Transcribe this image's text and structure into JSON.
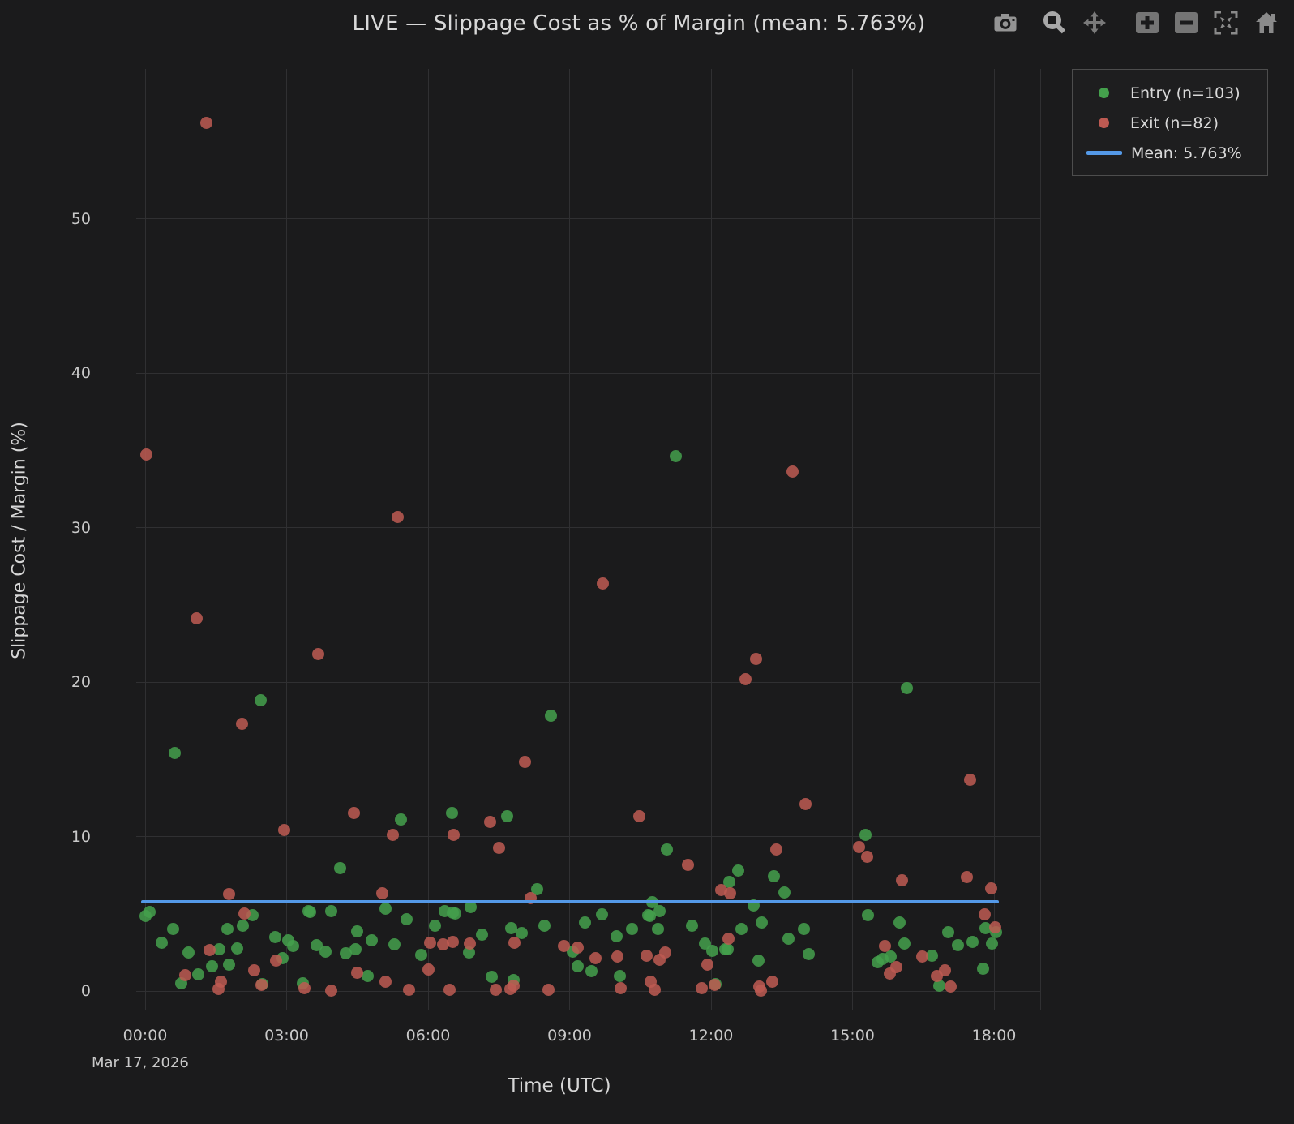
{
  "header": {
    "title": "LIVE — Slippage Cost as % of Margin (mean: 5.763%)"
  },
  "modebar": {
    "icons": [
      "camera",
      "box-zoom",
      "pan",
      "zoom-in",
      "zoom-out",
      "autoscale",
      "reset-home"
    ]
  },
  "chart_data": {
    "type": "scatter",
    "title": "LIVE — Slippage Cost as % of Margin (mean: 5.763%)",
    "xlabel": "Time (UTC)",
    "ylabel": "Slippage Cost / Margin (%)",
    "x_date_label": "Mar 17, 2026",
    "x_tick_hours": [
      0,
      3,
      6,
      9,
      12,
      15,
      18
    ],
    "x_tick_labels": [
      "00:00",
      "03:00",
      "06:00",
      "09:00",
      "12:00",
      "15:00",
      "18:00"
    ],
    "y_ticks": [
      0,
      10,
      20,
      30,
      40,
      50
    ],
    "ylim": [
      -1.2,
      59.7
    ],
    "xlim_hours": [
      -0.19,
      19.0
    ],
    "grid": true,
    "legend_position": "top-right",
    "mean_value": 5.763,
    "colors": {
      "entry": "#44a04c",
      "exit": "#bd5a52",
      "mean": "#5499e7"
    },
    "series": [
      {
        "name": "Entry (n=103)",
        "type": "scatter",
        "color": "#44a04c",
        "points": [
          [
            11.26,
            34.6
          ],
          [
            16.15,
            19.6
          ],
          [
            2.45,
            18.8
          ],
          [
            8.6,
            17.8
          ],
          [
            0.62,
            15.4
          ],
          [
            6.5,
            11.51
          ],
          [
            7.67,
            11.3
          ],
          [
            5.42,
            11.09
          ],
          [
            15.28,
            10.11
          ],
          [
            11.06,
            9.17
          ],
          [
            4.13,
            7.93
          ],
          [
            12.58,
            7.77
          ],
          [
            13.33,
            7.45
          ],
          [
            12.39,
            7.07
          ],
          [
            8.31,
            6.6
          ],
          [
            13.55,
            6.4
          ],
          [
            10.75,
            5.74
          ],
          [
            12.9,
            5.53
          ],
          [
            6.9,
            5.41
          ],
          [
            5.09,
            5.35
          ],
          [
            10.91,
            5.18
          ],
          [
            6.35,
            5.18
          ],
          [
            3.46,
            5.15
          ],
          [
            3.94,
            5.15
          ],
          [
            0.1,
            5.13
          ],
          [
            3.5,
            5.1
          ],
          [
            6.52,
            5.05
          ],
          [
            6.58,
            5.0
          ],
          [
            9.68,
            4.95
          ],
          [
            2.28,
            4.92
          ],
          [
            10.66,
            4.92
          ],
          [
            15.33,
            4.92
          ],
          [
            0.0,
            4.85
          ],
          [
            10.7,
            4.85
          ],
          [
            5.55,
            4.62
          ],
          [
            16.0,
            4.45
          ],
          [
            9.33,
            4.45
          ],
          [
            13.08,
            4.43
          ],
          [
            11.59,
            4.25
          ],
          [
            6.15,
            4.24
          ],
          [
            2.07,
            4.22
          ],
          [
            8.46,
            4.22
          ],
          [
            7.77,
            4.09
          ],
          [
            17.82,
            4.09
          ],
          [
            13.96,
            4.04
          ],
          [
            0.59,
            4.03
          ],
          [
            10.32,
            4.01
          ],
          [
            10.88,
            4.01
          ],
          [
            12.64,
            4.01
          ],
          [
            1.75,
            3.99
          ],
          [
            4.49,
            3.87
          ],
          [
            18.05,
            3.8
          ],
          [
            17.03,
            3.78
          ],
          [
            7.98,
            3.74
          ],
          [
            7.14,
            3.64
          ],
          [
            10.0,
            3.55
          ],
          [
            2.76,
            3.5
          ],
          [
            13.64,
            3.4
          ],
          [
            4.8,
            3.29
          ],
          [
            3.04,
            3.29
          ],
          [
            17.54,
            3.2
          ],
          [
            0.35,
            3.1
          ],
          [
            16.1,
            3.08
          ],
          [
            17.96,
            3.08
          ],
          [
            11.87,
            3.05
          ],
          [
            5.29,
            3.03
          ],
          [
            3.63,
            2.99
          ],
          [
            17.23,
            2.96
          ],
          [
            3.14,
            2.9
          ],
          [
            1.95,
            2.78
          ],
          [
            12.35,
            2.72
          ],
          [
            12.3,
            2.68
          ],
          [
            1.57,
            2.69
          ],
          [
            4.46,
            2.69
          ],
          [
            12.03,
            2.59
          ],
          [
            3.82,
            2.54
          ],
          [
            9.07,
            2.52
          ],
          [
            0.92,
            2.47
          ],
          [
            6.86,
            2.47
          ],
          [
            4.26,
            2.43
          ],
          [
            14.07,
            2.38
          ],
          [
            5.86,
            2.31
          ],
          [
            16.69,
            2.29
          ],
          [
            15.81,
            2.24
          ],
          [
            2.92,
            2.12
          ],
          [
            15.64,
            2.06
          ],
          [
            13.01,
            1.98
          ],
          [
            15.53,
            1.85
          ],
          [
            1.78,
            1.68
          ],
          [
            1.42,
            1.59
          ],
          [
            9.18,
            1.59
          ],
          [
            17.76,
            1.45
          ],
          [
            9.47,
            1.3
          ],
          [
            1.13,
            1.1
          ],
          [
            4.72,
            0.98
          ],
          [
            10.06,
            0.98
          ],
          [
            7.35,
            0.94
          ],
          [
            7.81,
            0.7
          ],
          [
            3.34,
            0.51
          ],
          [
            0.76,
            0.49
          ],
          [
            2.48,
            0.45
          ],
          [
            12.1,
            0.45
          ],
          [
            16.84,
            0.33
          ]
        ]
      },
      {
        "name": "Exit (n=82)",
        "type": "scatter",
        "color": "#bd5a52",
        "points": [
          [
            1.3,
            56.2
          ],
          [
            0.02,
            34.7
          ],
          [
            13.72,
            33.6
          ],
          [
            5.35,
            30.7
          ],
          [
            9.7,
            26.4
          ],
          [
            1.09,
            24.1
          ],
          [
            3.67,
            21.8
          ],
          [
            12.95,
            21.5
          ],
          [
            12.73,
            20.2
          ],
          [
            2.05,
            17.3
          ],
          [
            8.05,
            14.85
          ],
          [
            17.5,
            13.7
          ],
          [
            14.0,
            12.1
          ],
          [
            4.43,
            11.51
          ],
          [
            10.48,
            11.3
          ],
          [
            7.32,
            10.92
          ],
          [
            2.94,
            10.43
          ],
          [
            5.26,
            10.13
          ],
          [
            6.55,
            10.13
          ],
          [
            7.51,
            9.29
          ],
          [
            15.13,
            9.33
          ],
          [
            13.38,
            9.15
          ],
          [
            15.31,
            8.68
          ],
          [
            11.51,
            8.15
          ],
          [
            17.43,
            7.4
          ],
          [
            16.05,
            7.19
          ],
          [
            17.94,
            6.63
          ],
          [
            12.21,
            6.55
          ],
          [
            12.4,
            6.35
          ],
          [
            5.03,
            6.3
          ],
          [
            1.78,
            6.26
          ],
          [
            8.18,
            6.0
          ],
          [
            2.11,
            5.0
          ],
          [
            17.8,
            4.97
          ],
          [
            18.02,
            4.1
          ],
          [
            12.37,
            3.4
          ],
          [
            6.52,
            3.17
          ],
          [
            7.83,
            3.13
          ],
          [
            6.04,
            3.11
          ],
          [
            6.89,
            3.05
          ],
          [
            6.31,
            3.03
          ],
          [
            8.88,
            2.9
          ],
          [
            15.69,
            2.9
          ],
          [
            9.17,
            2.82
          ],
          [
            1.37,
            2.67
          ],
          [
            11.03,
            2.47
          ],
          [
            10.64,
            2.26
          ],
          [
            10.02,
            2.24
          ],
          [
            16.47,
            2.24
          ],
          [
            9.55,
            2.15
          ],
          [
            10.9,
            2.03
          ],
          [
            2.78,
            1.98
          ],
          [
            11.93,
            1.72
          ],
          [
            15.93,
            1.56
          ],
          [
            6.0,
            1.37
          ],
          [
            2.31,
            1.33
          ],
          [
            16.96,
            1.33
          ],
          [
            4.5,
            1.2
          ],
          [
            15.79,
            1.15
          ],
          [
            0.85,
            1.03
          ],
          [
            16.79,
            0.98
          ],
          [
            10.72,
            0.58
          ],
          [
            13.29,
            0.58
          ],
          [
            1.6,
            0.58
          ],
          [
            5.1,
            0.6
          ],
          [
            2.46,
            0.4
          ],
          [
            12.08,
            0.37
          ],
          [
            7.82,
            0.35
          ],
          [
            17.08,
            0.28
          ],
          [
            13.03,
            0.28
          ],
          [
            10.08,
            0.19
          ],
          [
            3.37,
            0.19
          ],
          [
            11.8,
            0.19
          ],
          [
            1.56,
            0.14
          ],
          [
            7.74,
            0.14
          ],
          [
            5.59,
            0.07
          ],
          [
            6.46,
            0.07
          ],
          [
            7.44,
            0.07
          ],
          [
            8.56,
            0.07
          ],
          [
            10.8,
            0.07
          ],
          [
            3.94,
            0.05
          ],
          [
            13.06,
            0.02
          ]
        ]
      },
      {
        "name": "Mean: 5.763%",
        "type": "line",
        "color": "#5499e7",
        "value": 5.763
      }
    ]
  }
}
